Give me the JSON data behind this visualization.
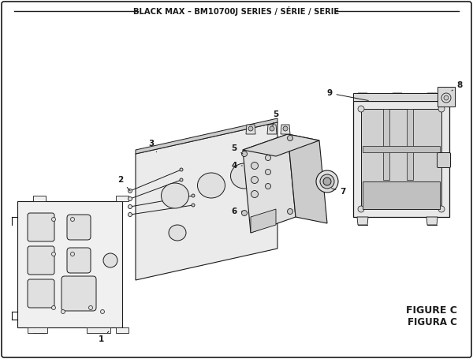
{
  "title": "BLACK MAX – BM10700J SERIES / SÉRIE / SERIE",
  "figure_label": "FIGURE C",
  "figure_label2": "FIGURA C",
  "bg_color": "#ffffff",
  "border_color": "#1a1a1a",
  "line_color": "#1a1a1a",
  "fill_light": "#f0f0f0",
  "fill_mid": "#e0e0e0",
  "fill_dark": "#cccccc"
}
